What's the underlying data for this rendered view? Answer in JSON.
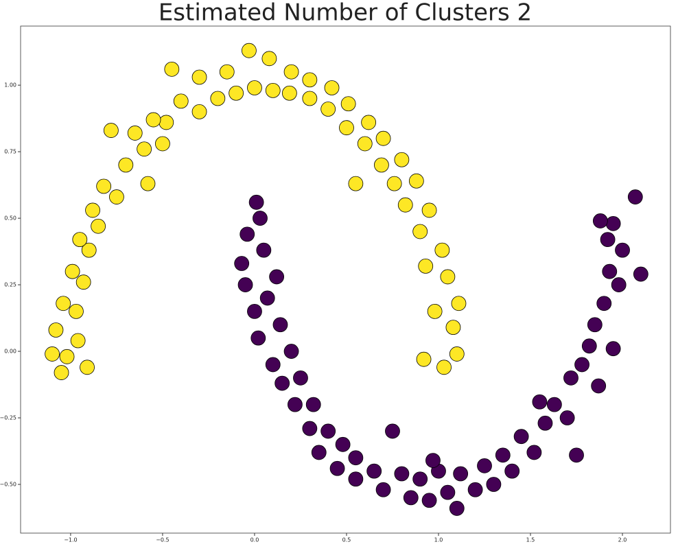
{
  "chart_data": {
    "type": "scatter",
    "title": "Estimated Number of Clusters 2",
    "xlim": [
      -1.272,
      2.261
    ],
    "ylim": [
      -0.683,
      1.222
    ],
    "xticks": [
      {
        "value": -1.0,
        "label": "−1.0"
      },
      {
        "value": -0.5,
        "label": "−0.5"
      },
      {
        "value": 0.0,
        "label": "0.0"
      },
      {
        "value": 0.5,
        "label": "0.5"
      },
      {
        "value": 1.0,
        "label": "1.0"
      },
      {
        "value": 1.5,
        "label": "1.5"
      },
      {
        "value": 2.0,
        "label": "2.0"
      }
    ],
    "yticks": [
      {
        "value": -0.5,
        "label": "−0.50"
      },
      {
        "value": -0.25,
        "label": "−0.25"
      },
      {
        "value": 0.0,
        "label": "0.00"
      },
      {
        "value": 0.25,
        "label": "0.25"
      },
      {
        "value": 0.5,
        "label": "0.50"
      },
      {
        "value": 0.75,
        "label": "0.75"
      },
      {
        "value": 1.0,
        "label": "1.00"
      }
    ],
    "series": [
      {
        "color": "#fde725",
        "x": [
          1.08,
          1.03,
          1.11,
          0.98,
          1.05,
          0.93,
          1.02,
          0.9,
          0.95,
          0.82,
          0.88,
          0.76,
          0.8,
          0.69,
          0.7,
          0.6,
          0.62,
          0.5,
          0.51,
          0.4,
          0.42,
          0.3,
          0.3,
          0.19,
          0.2,
          0.1,
          0.08,
          0.0,
          -0.03,
          -0.1,
          -0.15,
          -0.2,
          -0.3,
          -0.3,
          -0.4,
          -0.45,
          -0.48,
          -0.5,
          -0.55,
          -0.6,
          -0.65,
          -0.7,
          -0.78,
          -0.75,
          -0.82,
          -0.85,
          -0.88,
          -0.9,
          -0.95,
          -0.93,
          -0.99,
          -0.97,
          -1.04,
          -0.96,
          -1.08,
          -1.02,
          -1.1,
          -1.05,
          -0.91,
          -0.58,
          0.55,
          0.92,
          1.1
        ],
        "values": [
          0.09,
          -0.06,
          0.18,
          0.15,
          0.28,
          0.32,
          0.38,
          0.45,
          0.53,
          0.55,
          0.64,
          0.63,
          0.72,
          0.7,
          0.8,
          0.78,
          0.86,
          0.84,
          0.93,
          0.91,
          0.99,
          0.95,
          1.02,
          0.97,
          1.05,
          0.98,
          1.1,
          0.99,
          1.13,
          0.97,
          1.05,
          0.95,
          1.03,
          0.9,
          0.94,
          1.06,
          0.86,
          0.78,
          0.87,
          0.76,
          0.82,
          0.7,
          0.83,
          0.58,
          0.62,
          0.47,
          0.53,
          0.38,
          0.42,
          0.26,
          0.3,
          0.15,
          0.18,
          0.04,
          0.08,
          -0.02,
          -0.01,
          -0.08,
          -0.06,
          0.63,
          0.63,
          -0.03,
          -0.01
        ]
      },
      {
        "color": "#440154",
        "x": [
          0.01,
          -0.04,
          0.03,
          -0.07,
          0.05,
          -0.05,
          0.12,
          0.0,
          0.07,
          0.02,
          0.14,
          0.1,
          0.2,
          0.15,
          0.25,
          0.22,
          0.32,
          0.3,
          0.4,
          0.35,
          0.48,
          0.45,
          0.55,
          0.55,
          0.65,
          0.7,
          0.75,
          0.8,
          0.85,
          0.9,
          0.95,
          1.0,
          1.05,
          1.1,
          1.12,
          1.2,
          1.25,
          1.3,
          1.35,
          1.4,
          1.45,
          1.52,
          1.55,
          1.58,
          1.63,
          1.7,
          1.72,
          1.75,
          1.78,
          1.82,
          1.87,
          1.85,
          1.9,
          1.95,
          1.93,
          1.98,
          1.92,
          2.0,
          1.95,
          2.07,
          2.1,
          1.88,
          0.97
        ],
        "values": [
          0.56,
          0.44,
          0.5,
          0.33,
          0.38,
          0.25,
          0.28,
          0.15,
          0.2,
          0.05,
          0.1,
          -0.05,
          0.0,
          -0.12,
          -0.1,
          -0.2,
          -0.2,
          -0.29,
          -0.3,
          -0.38,
          -0.35,
          -0.44,
          -0.4,
          -0.48,
          -0.45,
          -0.52,
          -0.3,
          -0.46,
          -0.55,
          -0.48,
          -0.56,
          -0.45,
          -0.53,
          -0.59,
          -0.46,
          -0.52,
          -0.43,
          -0.5,
          -0.39,
          -0.45,
          -0.32,
          -0.38,
          -0.19,
          -0.27,
          -0.2,
          -0.25,
          -0.1,
          -0.39,
          -0.05,
          0.02,
          -0.13,
          0.1,
          0.18,
          0.01,
          0.3,
          0.25,
          0.42,
          0.38,
          0.48,
          0.58,
          0.29,
          0.49,
          -0.41
        ]
      }
    ]
  }
}
